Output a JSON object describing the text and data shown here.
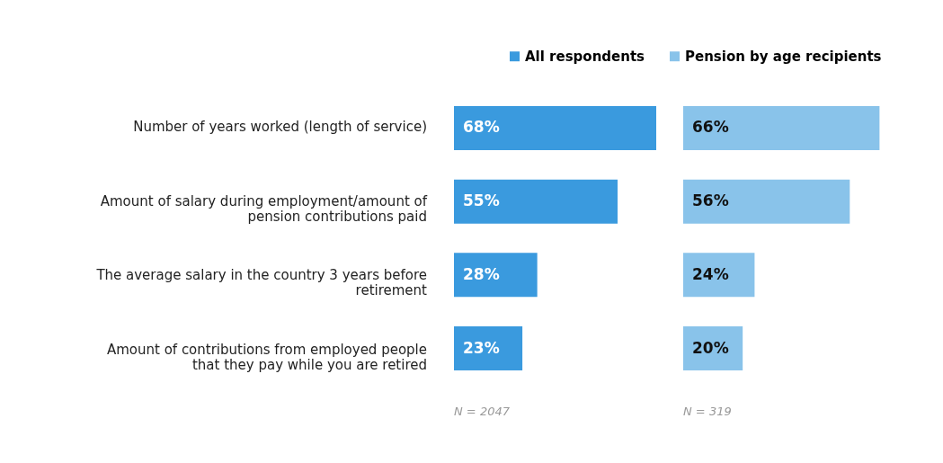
{
  "chart_data": [
    {
      "type": "bar",
      "orientation": "horizontal",
      "categories": [
        "Number of years worked (length of service)",
        "Amount of salary during employment/amount of pension contributions paid",
        "The average salary in the country 3 years before retirement",
        "Amount of contributions from employed people that they pay while you are retired"
      ],
      "series": [
        {
          "name": "All respondents",
          "color": "#3a9ade",
          "values": [
            68,
            55,
            28,
            23
          ],
          "value_labels": [
            "68%",
            "55%",
            "28%",
            "23%"
          ]
        }
      ],
      "legend": "top right",
      "annotations": [
        "N = 2047"
      ]
    },
    {
      "type": "bar",
      "orientation": "horizontal",
      "tick_labels": false,
      "categories": [
        null,
        null,
        null,
        null
      ],
      "series": [
        {
          "name": "Pension by age recipients",
          "color": "#89c3ea",
          "values": [
            66,
            56,
            24,
            20
          ],
          "value_labels": [
            "66%",
            "56%",
            "24%",
            "20%"
          ]
        }
      ],
      "annotations": [
        "N = 319"
      ]
    }
  ]
}
